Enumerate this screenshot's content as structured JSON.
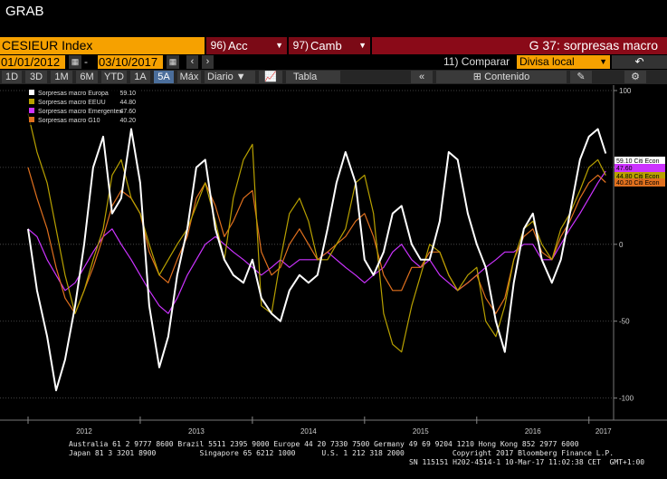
{
  "app": {
    "title": "GRAB"
  },
  "toolbar": {
    "ticker": "CESIEUR Index",
    "actions_num": "96)",
    "actions_label": "Acc",
    "edit_num": "97)",
    "edit_label": "Camb",
    "chart_name": "G 37: sorpresas macro"
  },
  "range": {
    "start": "01/01/2012",
    "end": "03/10/2017",
    "compare_label": "11) Comparar",
    "currency": "Divisa local"
  },
  "periods": [
    "1D",
    "3D",
    "1M",
    "6M",
    "YTD",
    "1A",
    "5A",
    "Máx"
  ],
  "period_active": "5A",
  "frequency": "Diario",
  "table_label": "Tabla",
  "content_label": "Contenido",
  "colors": {
    "europe": "#ffffff",
    "usa": "#b8a100",
    "emerging": "#cc33ff",
    "g10": "#e0701e",
    "accent": "#f6a100",
    "bar_red": "#7b0a16"
  },
  "chart_data": {
    "type": "line",
    "ylim": [
      -112,
      100
    ],
    "yticks": [
      "100",
      "50",
      "0",
      "-50",
      "-100"
    ],
    "xticks": [
      "2012",
      "2013",
      "2014",
      "2015",
      "2016",
      "2017"
    ],
    "legend_position": "top-left",
    "grid": "horizontal dotted",
    "series": [
      {
        "name": "Sorpresas macro Europa",
        "last": "59.10",
        "tag": "59.10 Citi Econ",
        "x": [
          2012.0,
          2012.08,
          2012.17,
          2012.25,
          2012.33,
          2012.42,
          2012.5,
          2012.58,
          2012.67,
          2012.75,
          2012.83,
          2012.92,
          2013.0,
          2013.08,
          2013.17,
          2013.25,
          2013.33,
          2013.42,
          2013.5,
          2013.58,
          2013.67,
          2013.75,
          2013.83,
          2013.92,
          2014.0,
          2014.08,
          2014.17,
          2014.25,
          2014.33,
          2014.42,
          2014.5,
          2014.58,
          2014.67,
          2014.75,
          2014.83,
          2014.92,
          2015.0,
          2015.08,
          2015.17,
          2015.25,
          2015.33,
          2015.42,
          2015.5,
          2015.58,
          2015.67,
          2015.75,
          2015.83,
          2015.92,
          2016.0,
          2016.08,
          2016.17,
          2016.25,
          2016.33,
          2016.42,
          2016.5,
          2016.58,
          2016.67,
          2016.75,
          2016.83,
          2016.92,
          2017.0,
          2017.08,
          2017.15
        ],
        "values": [
          10,
          -30,
          -60,
          -95,
          -75,
          -40,
          0,
          50,
          70,
          20,
          30,
          75,
          40,
          -40,
          -80,
          -60,
          -20,
          10,
          50,
          55,
          10,
          -10,
          -20,
          -25,
          -10,
          -35,
          -45,
          -50,
          -30,
          -20,
          -25,
          -20,
          10,
          40,
          60,
          40,
          -10,
          -20,
          -5,
          20,
          25,
          0,
          -10,
          -10,
          15,
          60,
          55,
          20,
          0,
          -15,
          -50,
          -70,
          -25,
          10,
          20,
          -10,
          -25,
          -10,
          20,
          55,
          70,
          75,
          59.1
        ]
      },
      {
        "name": "Sorpresas macro EEUU",
        "last": "44.80",
        "tag": "44.80 Citi Econ",
        "x": [
          2012.0,
          2012.08,
          2012.17,
          2012.25,
          2012.33,
          2012.42,
          2012.5,
          2012.58,
          2012.67,
          2012.75,
          2012.83,
          2012.92,
          2013.0,
          2013.08,
          2013.17,
          2013.25,
          2013.33,
          2013.42,
          2013.5,
          2013.58,
          2013.67,
          2013.75,
          2013.83,
          2013.92,
          2014.0,
          2014.08,
          2014.17,
          2014.25,
          2014.33,
          2014.42,
          2014.5,
          2014.58,
          2014.67,
          2014.75,
          2014.83,
          2014.92,
          2015.0,
          2015.08,
          2015.17,
          2015.25,
          2015.33,
          2015.42,
          2015.5,
          2015.58,
          2015.67,
          2015.75,
          2015.83,
          2015.92,
          2016.0,
          2016.08,
          2016.17,
          2016.25,
          2016.33,
          2016.42,
          2016.5,
          2016.58,
          2016.67,
          2016.75,
          2016.83,
          2016.92,
          2017.0,
          2017.08,
          2017.15
        ],
        "values": [
          85,
          60,
          40,
          10,
          -20,
          -45,
          -30,
          -10,
          10,
          45,
          55,
          30,
          20,
          0,
          -20,
          -10,
          0,
          10,
          25,
          40,
          15,
          -10,
          30,
          55,
          65,
          -40,
          -45,
          -10,
          20,
          30,
          15,
          -10,
          -10,
          0,
          10,
          40,
          45,
          20,
          -45,
          -65,
          -70,
          -40,
          -20,
          0,
          -5,
          -20,
          -30,
          -20,
          -15,
          -50,
          -60,
          -40,
          -10,
          10,
          15,
          0,
          -10,
          10,
          20,
          35,
          50,
          55,
          44.8
        ]
      },
      {
        "name": "Sorpresas macro Emergentes",
        "last": "47.60",
        "tag": "47.60",
        "x": [
          2012.0,
          2012.08,
          2012.17,
          2012.25,
          2012.33,
          2012.42,
          2012.5,
          2012.58,
          2012.67,
          2012.75,
          2012.83,
          2012.92,
          2013.0,
          2013.08,
          2013.17,
          2013.25,
          2013.33,
          2013.42,
          2013.5,
          2013.58,
          2013.67,
          2013.75,
          2013.83,
          2013.92,
          2014.0,
          2014.08,
          2014.17,
          2014.25,
          2014.33,
          2014.42,
          2014.5,
          2014.58,
          2014.67,
          2014.75,
          2014.83,
          2014.92,
          2015.0,
          2015.08,
          2015.17,
          2015.25,
          2015.33,
          2015.42,
          2015.5,
          2015.58,
          2015.67,
          2015.75,
          2015.83,
          2015.92,
          2016.0,
          2016.08,
          2016.17,
          2016.25,
          2016.33,
          2016.42,
          2016.5,
          2016.58,
          2016.67,
          2016.75,
          2016.83,
          2016.92,
          2017.0,
          2017.08,
          2017.15
        ],
        "values": [
          10,
          5,
          -10,
          -20,
          -30,
          -25,
          -15,
          -5,
          5,
          10,
          0,
          -10,
          -20,
          -30,
          -40,
          -45,
          -35,
          -20,
          -10,
          0,
          5,
          0,
          -5,
          -10,
          -15,
          -20,
          -15,
          -10,
          -15,
          -10,
          -10,
          -10,
          -5,
          -10,
          -15,
          -20,
          -25,
          -20,
          -15,
          -5,
          0,
          -10,
          -15,
          -10,
          -20,
          -25,
          -30,
          -25,
          -20,
          -15,
          -10,
          -5,
          -5,
          0,
          0,
          -10,
          -10,
          0,
          10,
          20,
          30,
          40,
          47.6
        ]
      },
      {
        "name": "Sorpresas macro G10",
        "last": "40.20",
        "tag": "40.20 Citi Econ",
        "x": [
          2012.0,
          2012.08,
          2012.17,
          2012.25,
          2012.33,
          2012.42,
          2012.5,
          2012.58,
          2012.67,
          2012.75,
          2012.83,
          2012.92,
          2013.0,
          2013.08,
          2013.17,
          2013.25,
          2013.33,
          2013.42,
          2013.5,
          2013.58,
          2013.67,
          2013.75,
          2013.83,
          2013.92,
          2014.0,
          2014.08,
          2014.17,
          2014.25,
          2014.33,
          2014.42,
          2014.5,
          2014.58,
          2014.67,
          2014.75,
          2014.83,
          2014.92,
          2015.0,
          2015.08,
          2015.17,
          2015.25,
          2015.33,
          2015.42,
          2015.5,
          2015.58,
          2015.67,
          2015.75,
          2015.83,
          2015.92,
          2016.0,
          2016.08,
          2016.17,
          2016.25,
          2016.33,
          2016.42,
          2016.5,
          2016.58,
          2016.67,
          2016.75,
          2016.83,
          2016.92,
          2017.0,
          2017.08,
          2017.15
        ],
        "values": [
          50,
          30,
          10,
          -15,
          -35,
          -45,
          -30,
          -15,
          5,
          25,
          35,
          30,
          20,
          -5,
          -20,
          -25,
          -10,
          5,
          30,
          40,
          25,
          5,
          15,
          30,
          35,
          -5,
          -20,
          -15,
          0,
          10,
          0,
          -10,
          -5,
          0,
          5,
          15,
          20,
          5,
          -20,
          -30,
          -30,
          -15,
          -15,
          -5,
          -5,
          -20,
          -30,
          -25,
          -20,
          -35,
          -45,
          -35,
          -10,
          5,
          10,
          -5,
          -10,
          5,
          15,
          30,
          40,
          45,
          40.2
        ]
      }
    ]
  },
  "footer": {
    "line1": "Australia 61 2 9777 8600 Brazil 5511 2395 9000 Europe 44 20 7330 7500 Germany 49 69 9204 1210 Hong Kong 852 2977 6000",
    "line2": "Japan 81 3 3201 8900          Singapore 65 6212 1000      U.S. 1 212 318 2000           Copyright 2017 Bloomberg Finance L.P.",
    "line3": "SN 115151 H202-4514-1 10-Mar-17 11:02:38 CET  GMT+1:00"
  }
}
